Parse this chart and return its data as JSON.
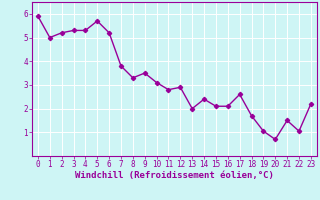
{
  "x": [
    0,
    1,
    2,
    3,
    4,
    5,
    6,
    7,
    8,
    9,
    10,
    11,
    12,
    13,
    14,
    15,
    16,
    17,
    18,
    19,
    20,
    21,
    22,
    23
  ],
  "y": [
    5.9,
    5.0,
    5.2,
    5.3,
    5.3,
    5.7,
    5.2,
    3.8,
    3.3,
    3.5,
    3.1,
    2.8,
    2.9,
    2.0,
    2.4,
    2.1,
    2.1,
    2.6,
    1.7,
    1.05,
    0.7,
    1.5,
    1.05,
    2.2
  ],
  "line_color": "#990099",
  "marker": "D",
  "markersize": 2.2,
  "linewidth": 1.0,
  "background_color": "#cef5f5",
  "grid_color": "#ffffff",
  "xlabel": "Windchill (Refroidissement éolien,°C)",
  "xlabel_color": "#990099",
  "tick_color": "#990099",
  "spine_color": "#990099",
  "ylim": [
    0,
    6.5
  ],
  "xlim": [
    -0.5,
    23.5
  ],
  "yticks": [
    1,
    2,
    3,
    4,
    5,
    6
  ],
  "xticks": [
    0,
    1,
    2,
    3,
    4,
    5,
    6,
    7,
    8,
    9,
    10,
    11,
    12,
    13,
    14,
    15,
    16,
    17,
    18,
    19,
    20,
    21,
    22,
    23
  ],
  "xtick_labels": [
    "0",
    "1",
    "2",
    "3",
    "4",
    "5",
    "6",
    "7",
    "8",
    "9",
    "10",
    "11",
    "12",
    "13",
    "14",
    "15",
    "16",
    "17",
    "18",
    "19",
    "20",
    "21",
    "22",
    "23"
  ],
  "ytick_labels": [
    "1",
    "2",
    "3",
    "4",
    "5",
    "6"
  ],
  "xlabel_fontsize": 6.5,
  "tick_fontsize": 5.5
}
